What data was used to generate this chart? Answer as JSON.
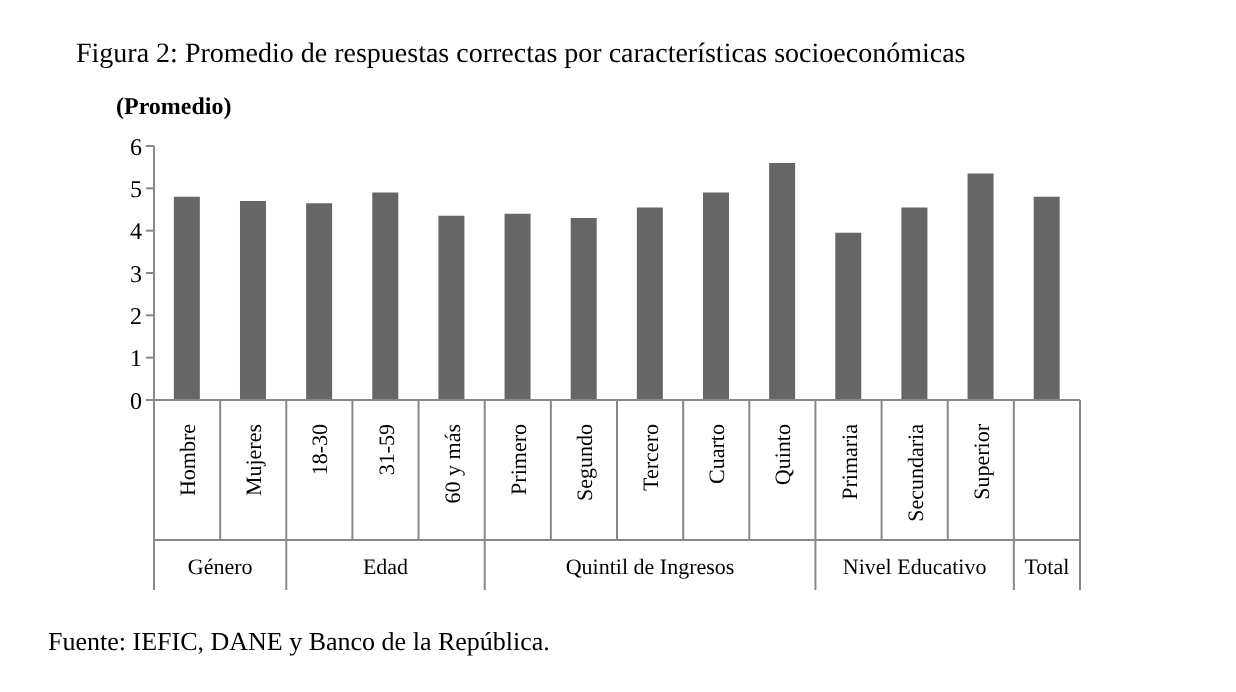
{
  "chart_data": {
    "type": "bar",
    "title": "Figura 2: Promedio de respuestas correctas por características socioeconómicas",
    "ylabel": "(Promedio)",
    "categories": [
      "Hombre",
      "Mujeres",
      "18-30",
      "31-59",
      "60 y más",
      "Primero",
      "Segundo",
      "Tercero",
      "Cuarto",
      "Quinto",
      "Primaria",
      "Secundaria",
      "Superior",
      null
    ],
    "values": [
      4.8,
      4.7,
      4.65,
      4.9,
      4.35,
      4.4,
      4.3,
      4.55,
      4.9,
      5.6,
      3.95,
      4.55,
      5.35,
      4.8
    ],
    "color": "#666666",
    "ylim": [
      0,
      6
    ],
    "yticks": [
      0,
      1,
      2,
      3,
      4,
      5,
      6
    ],
    "grid": false,
    "legend": false,
    "annotations": [
      "Género",
      "Edad",
      "Quintil de Ingresos",
      "Nivel Educativo",
      "Total",
      "Fuente: IEFIC, DANE y Banco de la República."
    ]
  }
}
